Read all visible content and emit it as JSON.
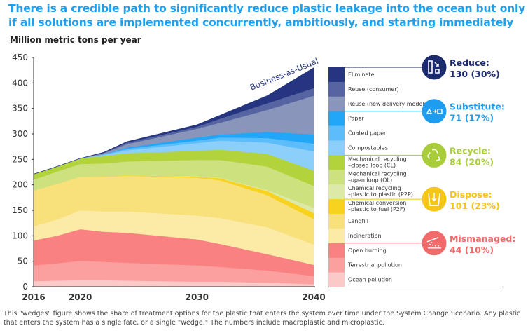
{
  "title": "There is a credible path to significantly reduce plastic leakage into the ocean but only if all solutions are implemented concurrently, ambitiously, and starting immediately",
  "footnote": "This \"wedges\" figure shows the share of treatment options for the plastic that enters the system over time under the System Change Scenario. Any plastic that enters the system has a single fate, or a single \"wedge.\" The numbers include macroplastic and microplastic.",
  "chart_data": {
    "type": "area",
    "stacked": true,
    "ylabel": "Million metric tons per year",
    "ylim": [
      0,
      450
    ],
    "yticks": [
      0,
      50,
      100,
      150,
      200,
      250,
      300,
      350,
      400,
      450
    ],
    "xlim": [
      2016,
      2040
    ],
    "xticks": [
      2016,
      2020,
      2030,
      2040
    ],
    "grid": false,
    "annotation": "Business-as-Usual",
    "x": [
      2016,
      2018,
      2020,
      2022,
      2024,
      2030,
      2032,
      2036,
      2040
    ],
    "series": [
      {
        "name": "Ocean pollution",
        "color": "#fcc9c9",
        "values": [
          11,
          12,
          13,
          13,
          12,
          10,
          10,
          8,
          5
        ]
      },
      {
        "name": "Terrestrial pollution",
        "color": "#fb9f9f",
        "values": [
          31,
          34,
          38,
          36,
          35,
          32,
          29,
          24,
          16
        ]
      },
      {
        "name": "Open burning",
        "color": "#f98181",
        "values": [
          49,
          54,
          62,
          59,
          59,
          51,
          45,
          32,
          22
        ]
      },
      {
        "name": "Incineration",
        "color": "#fbeba6",
        "values": [
          28,
          32,
          37,
          40,
          42,
          47,
          51,
          53,
          40
        ]
      },
      {
        "name": "Landfill",
        "color": "#f8e07a",
        "values": [
          70,
          70,
          66,
          68,
          70,
          74,
          74,
          63,
          50
        ]
      },
      {
        "name": "Chemical conversion –plastic to fuel (P2F)",
        "color": "#f7d21e",
        "values": [
          0,
          0,
          0,
          1,
          1,
          2,
          4,
          8,
          12
        ]
      },
      {
        "name": "Chemical recycling –plastic to plastic (P2P)",
        "color": "#dde9a8",
        "values": [
          0,
          0,
          0,
          0,
          0,
          1,
          1,
          2,
          10
        ]
      },
      {
        "name": "Mechanical recycling –open loop (OL)",
        "color": "#cde17e",
        "values": [
          21,
          24,
          25,
          25,
          27,
          32,
          35,
          46,
          43
        ]
      },
      {
        "name": "Mechanical recycling –closed loop (CL)",
        "color": "#b3d33c",
        "values": [
          11,
          10,
          11,
          15,
          16,
          18,
          20,
          25,
          30
        ]
      },
      {
        "name": "Compostables",
        "color": "#8dcffb",
        "values": [
          0,
          0,
          0,
          2,
          6,
          15,
          18,
          22,
          38
        ]
      },
      {
        "name": "Coated paper",
        "color": "#5cbdfa",
        "values": [
          0,
          0,
          0,
          1,
          3,
          5,
          6,
          9,
          15
        ]
      },
      {
        "name": "Paper",
        "color": "#22a6f8",
        "values": [
          0,
          0,
          0,
          0,
          2,
          6,
          6,
          12,
          18
        ]
      },
      {
        "name": "Reuse (new delivery models)",
        "color": "#8a95bb",
        "values": [
          0,
          0,
          0,
          2,
          7,
          17,
          23,
          43,
          76
        ]
      },
      {
        "name": "Reuse (consumer)",
        "color": "#5764a2",
        "values": [
          0,
          0,
          0,
          1,
          3,
          4,
          8,
          13,
          15
        ]
      },
      {
        "name": "Eliminate",
        "color": "#253580",
        "values": [
          0,
          0,
          0,
          1,
          2,
          4,
          7,
          15,
          40
        ]
      }
    ],
    "legend_rows": [
      [
        "Eliminate"
      ],
      [
        "Reuse (consumer)"
      ],
      [
        "Reuse (new delivery models)"
      ],
      [
        "Paper"
      ],
      [
        "Coated paper"
      ],
      [
        "Compostables"
      ],
      [
        "Mechanical recycling",
        "–closed loop (CL)"
      ],
      [
        "Mechanical recycling",
        "–open loop (OL)"
      ],
      [
        "Chemical recycling",
        "–plastic to plastic (P2P)"
      ],
      [
        "Chemical conversion",
        "–plastic to fuel (P2F)"
      ],
      [
        "Landfill"
      ],
      [
        "Incineration"
      ],
      [
        "Open burning"
      ],
      [
        "Terrestrial pollution"
      ],
      [
        "Ocean pollution"
      ]
    ],
    "legend_colors": [
      "#253580",
      "#5764a2",
      "#8a95bb",
      "#22a6f8",
      "#5cbdfa",
      "#8dcffb",
      "#b3d33c",
      "#cde17e",
      "#dde9a8",
      "#f7d21e",
      "#f8e07a",
      "#fbeba6",
      "#f98181",
      "#fb9f9f",
      "#fcc9c9"
    ],
    "groups": [
      {
        "name": "Reduce:",
        "value": "130 (30%)",
        "color": "#1c2a6e",
        "text_color": "#1c2a6e",
        "icon": "reduce-icon",
        "rows": 3
      },
      {
        "name": "Substitute:",
        "value": "71 (17%)",
        "color": "#1e9cf0",
        "text_color": "#1e9cf0",
        "icon": "substitute-icon",
        "rows": 3
      },
      {
        "name": "Recycle:",
        "value": "84 (20%)",
        "color": "#a8cc3a",
        "text_color": "#a8cc3a",
        "icon": "recycle-icon",
        "rows": 3
      },
      {
        "name": "Dispose:",
        "value": "101 (23%)",
        "color": "#f5c518",
        "text_color": "#f5c518",
        "icon": "dispose-icon",
        "rows": 3
      },
      {
        "name": "Mismanaged:",
        "value": "44 (10%)",
        "color": "#f26a6a",
        "text_color": "#f26a6a",
        "icon": "mismanaged-icon",
        "rows": 3
      }
    ]
  }
}
